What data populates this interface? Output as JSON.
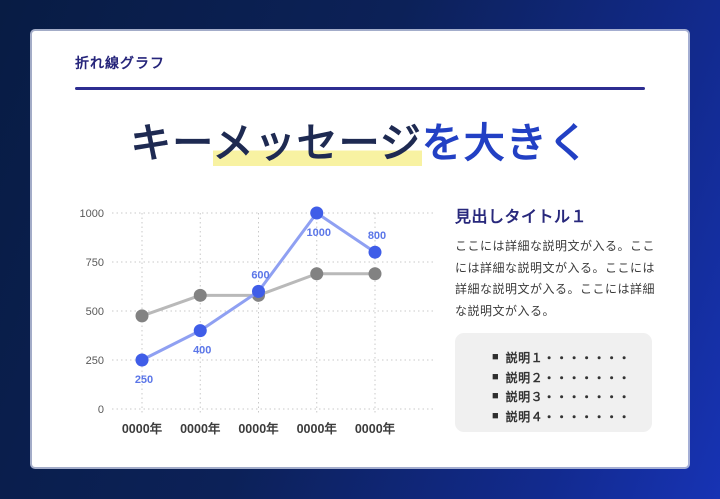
{
  "slide": {
    "header": "折れ線グラフ",
    "title": {
      "part1": "キー",
      "highlight": "メッセージ",
      "part2": "を大きく"
    },
    "colors": {
      "frame_dark": "#081c44",
      "frame_bright": "#1733b4",
      "header_navy": "#26257b",
      "rule_navy": "#2d2d91",
      "title_dark": "#1e2a52",
      "title_blue": "#2240c4",
      "highlight_yellow": "#f8f2a2",
      "card_bg": "#ffffff"
    }
  },
  "chart_data": {
    "type": "line",
    "title": "",
    "xlabel": "",
    "ylabel": "",
    "categories": [
      "0000年",
      "0000年",
      "0000年",
      "0000年",
      "0000年"
    ],
    "series": [
      {
        "name": "gray-series",
        "values": [
          475,
          580,
          580,
          690,
          690
        ],
        "line_color": "#b9b9b9",
        "dot_color": "#828282",
        "show_labels": false
      },
      {
        "name": "blue-series",
        "values": [
          250,
          400,
          600,
          1000,
          800
        ],
        "line_color": "#8fa0f2",
        "dot_color": "#3f5de8",
        "label_color": "#5b76e8",
        "show_labels": true,
        "label_positions": [
          "below",
          "below",
          "above",
          "below",
          "above"
        ]
      }
    ],
    "ylim": [
      0,
      1000
    ],
    "yticks": [
      0,
      250,
      500,
      750,
      1000
    ],
    "grid": true,
    "grid_color": "#c9c9c9",
    "legend_position": "none"
  },
  "panel": {
    "heading": "見出しタイトル１",
    "body": "ここには詳細な説明文が入る。ここには詳細な説明文が入る。ここには詳細な説明文が入る。ここには詳細な説明文が入る。",
    "bullet": "■",
    "items": [
      {
        "label": "説明１・・・・・・・"
      },
      {
        "label": "説明２・・・・・・・"
      },
      {
        "label": "説明３・・・・・・・"
      },
      {
        "label": "説明４・・・・・・・"
      }
    ]
  }
}
